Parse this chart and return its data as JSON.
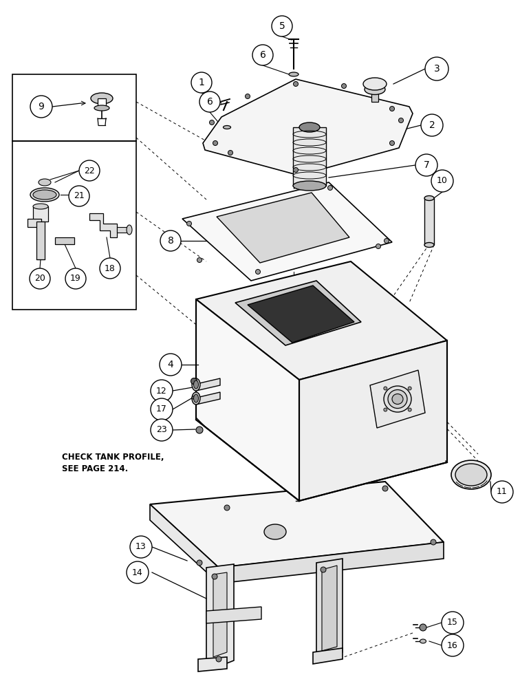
{
  "bg_color": "#ffffff",
  "lc": "#000000",
  "face_white": "#ffffff",
  "face_light": "#f0f0f0",
  "face_mid": "#e0e0e0",
  "face_dark": "#c8c8c8",
  "fig_width": 7.72,
  "fig_height": 10.0,
  "dpi": 100,
  "check_text": "CHECK TANK PROFILE,\nSEE PAGE 214."
}
